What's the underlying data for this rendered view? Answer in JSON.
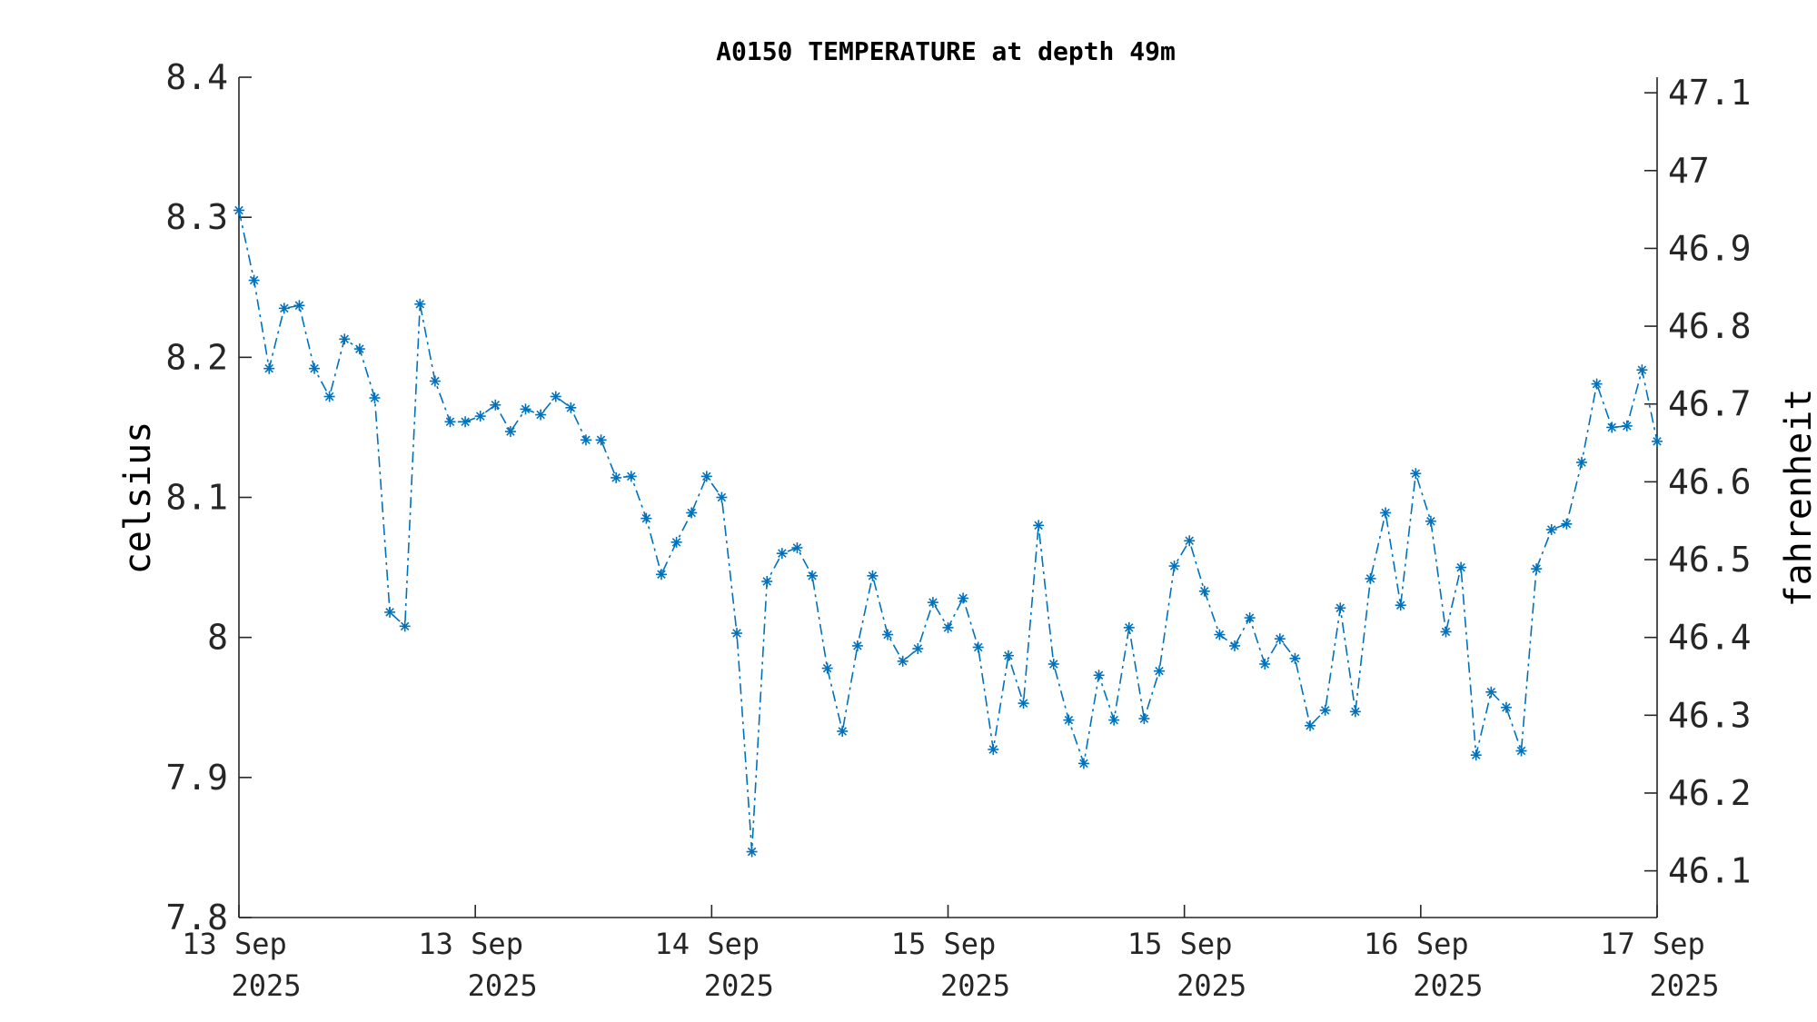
{
  "chart_data": {
    "type": "line",
    "title": "A0150 TEMPERATURE at depth 49m",
    "ylabel": "celsius",
    "y2label": "fahrenheit",
    "ylim": [
      7.8,
      8.4
    ],
    "y2lim": [
      46.04,
      47.12
    ],
    "yticks": [
      "7.8",
      "7.9",
      "8",
      "8.1",
      "8.2",
      "8.3",
      "8.4"
    ],
    "y2ticks": [
      "46.1",
      "46.2",
      "46.3",
      "46.4",
      "46.5",
      "46.6",
      "46.7",
      "46.8",
      "46.9",
      "47",
      "47.1"
    ],
    "xticks": [
      {
        "day": "13 Sep",
        "year": "2025"
      },
      {
        "day": "13 Sep",
        "year": "2025"
      },
      {
        "day": "14 Sep",
        "year": "2025"
      },
      {
        "day": "15 Sep",
        "year": "2025"
      },
      {
        "day": "15 Sep",
        "year": "2025"
      },
      {
        "day": "16 Sep",
        "year": "2025"
      },
      {
        "day": "17 Sep",
        "year": "2025"
      }
    ],
    "line_style": "dash-dot",
    "marker": "asterisk",
    "grid": false,
    "colors": {
      "series": "#0072BD",
      "axis": "#262626"
    },
    "series": [
      {
        "values": [
          8.305,
          8.255,
          8.192,
          8.235,
          8.237,
          8.192,
          8.172,
          8.213,
          8.206,
          8.171,
          8.018,
          8.008,
          8.238,
          8.183,
          8.154,
          8.154,
          8.158,
          8.166,
          8.147,
          8.163,
          8.159,
          8.172,
          8.164,
          8.141,
          8.141,
          8.114,
          8.115,
          8.085,
          8.045,
          8.068,
          8.089,
          8.115,
          8.1,
          8.003,
          7.847,
          8.04,
          8.06,
          8.064,
          8.044,
          7.978,
          7.933,
          7.994,
          8.044,
          8.002,
          7.983,
          7.992,
          8.025,
          8.007,
          8.028,
          7.993,
          7.92,
          7.987,
          7.953,
          8.08,
          7.981,
          7.941,
          7.91,
          7.973,
          7.941,
          8.007,
          7.942,
          7.976,
          8.051,
          8.069,
          8.033,
          8.002,
          7.994,
          8.014,
          7.981,
          7.999,
          7.985,
          7.937,
          7.948,
          8.021,
          7.947,
          8.042,
          8.089,
          8.023,
          8.117,
          8.083,
          8.004,
          8.05,
          7.916,
          7.961,
          7.95,
          7.919,
          8.049,
          8.077,
          8.081,
          8.125,
          8.181,
          8.15,
          8.151,
          8.191,
          8.14
        ]
      }
    ]
  }
}
